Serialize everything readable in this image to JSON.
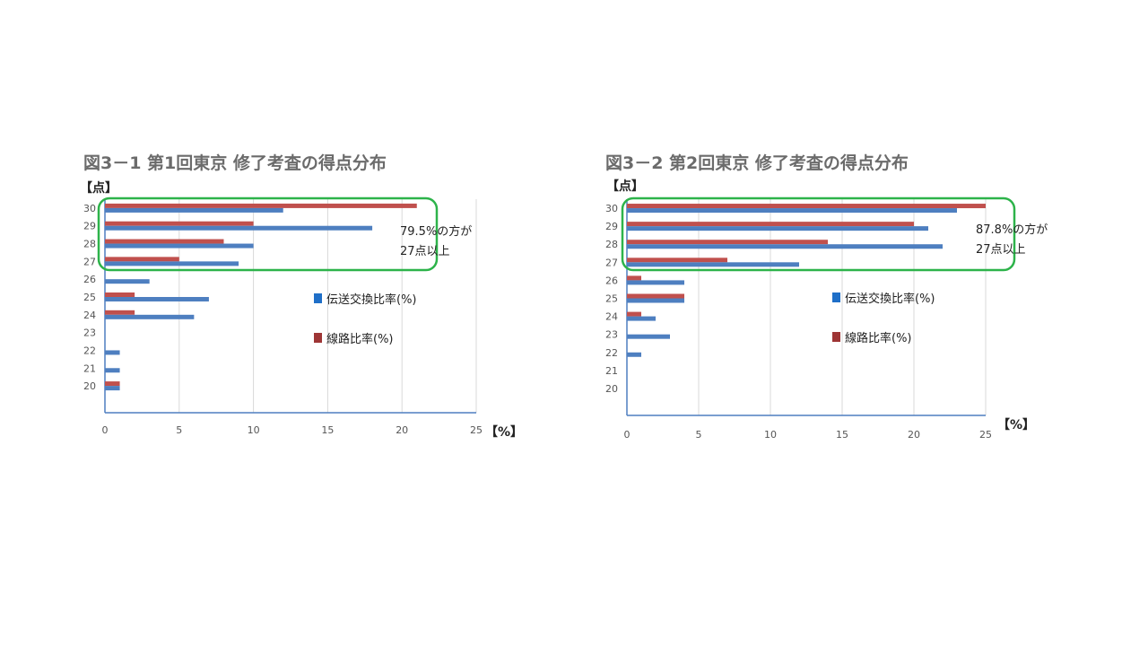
{
  "colors": {
    "transmission": "#4e7fc0",
    "line": "#c0504d",
    "legend_transmission": "#1f6fc8",
    "legend_line": "#9e3535",
    "highlight": "#2db34a",
    "axis": "#4e7fc0",
    "grid": "#d9d9d9"
  },
  "chart_data": [
    {
      "type": "bar",
      "orientation": "horizontal",
      "title": "図3－1 第1回東京 修了考査の得点分布",
      "y_unit_label": "【点】",
      "x_unit_label": "【%】",
      "categories": [
        "30",
        "29",
        "28",
        "27",
        "26",
        "25",
        "24",
        "23",
        "22",
        "21",
        "20"
      ],
      "xlim": [
        0,
        25
      ],
      "x_ticks": [
        "0",
        "5",
        "10",
        "15",
        "20",
        "25"
      ],
      "series": [
        {
          "name": "伝送交換比率(%)",
          "values": [
            12,
            18,
            10,
            9,
            3,
            7,
            6,
            0,
            1,
            1,
            1
          ]
        },
        {
          "name": "線路比率(%)",
          "values": [
            21,
            10,
            8,
            5,
            0,
            2,
            2,
            0,
            0,
            0,
            1
          ]
        }
      ],
      "annotation_lines": [
        "79.5%の方が",
        "27点以上"
      ],
      "highlight_categories": [
        "30",
        "29",
        "28",
        "27"
      ],
      "grid": "vertical",
      "legend_position": "right"
    },
    {
      "type": "bar",
      "orientation": "horizontal",
      "title": "図3－2 第2回東京 修了考査の得点分布",
      "y_unit_label": "【点】",
      "x_unit_label": "【%】",
      "categories": [
        "30",
        "29",
        "28",
        "27",
        "26",
        "25",
        "24",
        "23",
        "22",
        "21",
        "20"
      ],
      "xlim": [
        0,
        25
      ],
      "x_ticks": [
        "0",
        "5",
        "10",
        "15",
        "20",
        "25"
      ],
      "series": [
        {
          "name": "伝送交換比率(%)",
          "values": [
            23,
            21,
            22,
            12,
            4,
            4,
            2,
            3,
            1,
            0,
            0
          ]
        },
        {
          "name": "線路比率(%)",
          "values": [
            25,
            20,
            14,
            7,
            1,
            4,
            1,
            0,
            0,
            0,
            0
          ]
        }
      ],
      "annotation_lines": [
        "87.8%の方が",
        "27点以上"
      ],
      "highlight_categories": [
        "30",
        "29",
        "28",
        "27"
      ],
      "grid": "vertical",
      "legend_position": "right"
    }
  ]
}
